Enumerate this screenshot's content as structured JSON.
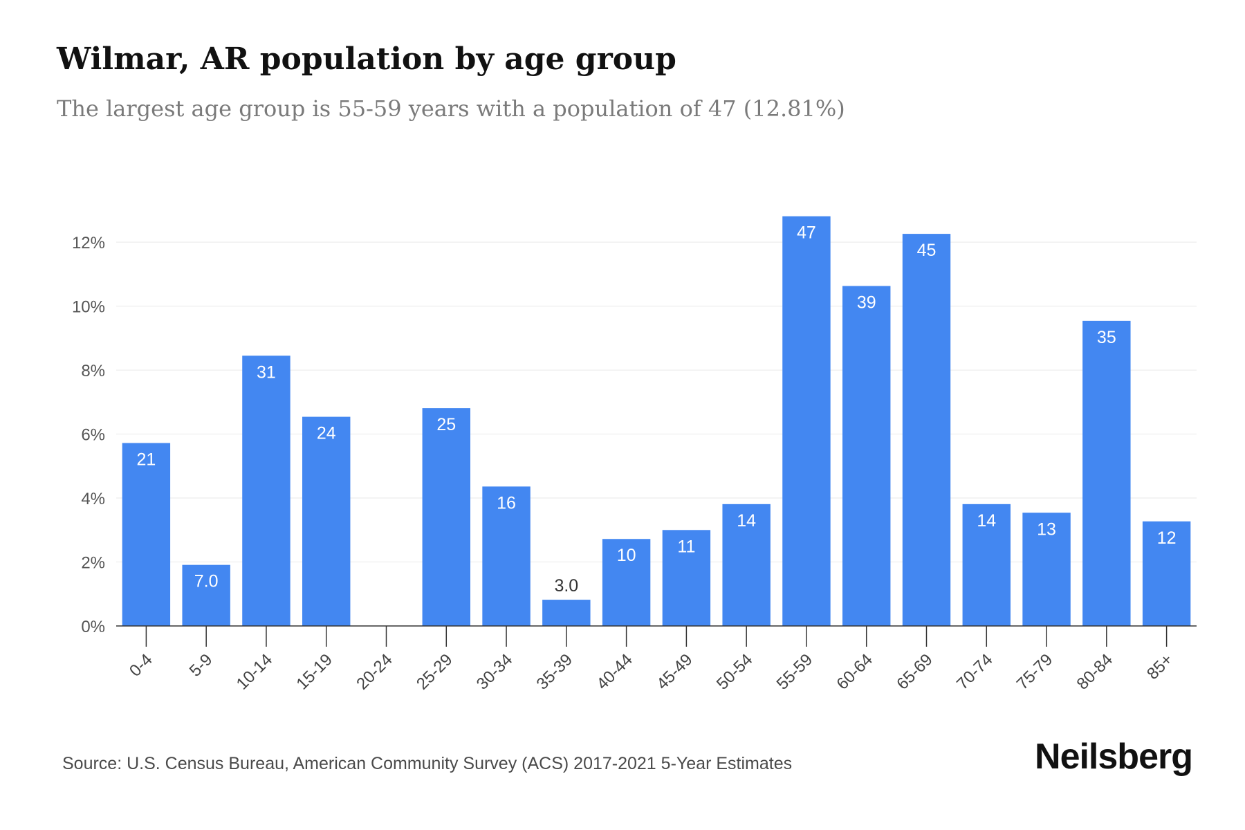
{
  "chart_data": {
    "type": "bar",
    "title": "Wilmar, AR population by age group",
    "subtitle": "The largest age group is 55-59 years with a population of 47 (12.81%)",
    "categories": [
      "0-4",
      "5-9",
      "10-14",
      "15-19",
      "20-24",
      "25-29",
      "30-34",
      "35-39",
      "40-44",
      "45-49",
      "50-54",
      "55-59",
      "60-64",
      "65-69",
      "70-74",
      "75-79",
      "80-84",
      "85+"
    ],
    "values": [
      5.72,
      1.91,
      8.45,
      6.54,
      0,
      6.81,
      4.36,
      0.82,
      2.72,
      3.0,
      3.81,
      12.81,
      10.63,
      12.26,
      3.81,
      3.54,
      9.54,
      3.27
    ],
    "data_labels": [
      "21",
      "7.0",
      "31",
      "24",
      "",
      "25",
      "16",
      "3.0",
      "10",
      "11",
      "14",
      "47",
      "39",
      "45",
      "14",
      "13",
      "35",
      "12"
    ],
    "y_ticks": [
      "0%",
      "2%",
      "4%",
      "6%",
      "8%",
      "10%",
      "12%"
    ],
    "y_tick_values": [
      0,
      2,
      4,
      6,
      8,
      10,
      12
    ],
    "ylim": [
      0,
      13.3
    ],
    "xlabel": "",
    "ylabel": "",
    "grid": true,
    "bar_color": "#4387f1",
    "label_color_inside": "#ffffff",
    "label_color_outside": "#333333"
  },
  "footer": {
    "source": "Source: U.S. Census Bureau, American Community Survey (ACS) 2017-2021 5-Year Estimates",
    "brand": "Neilsberg"
  }
}
